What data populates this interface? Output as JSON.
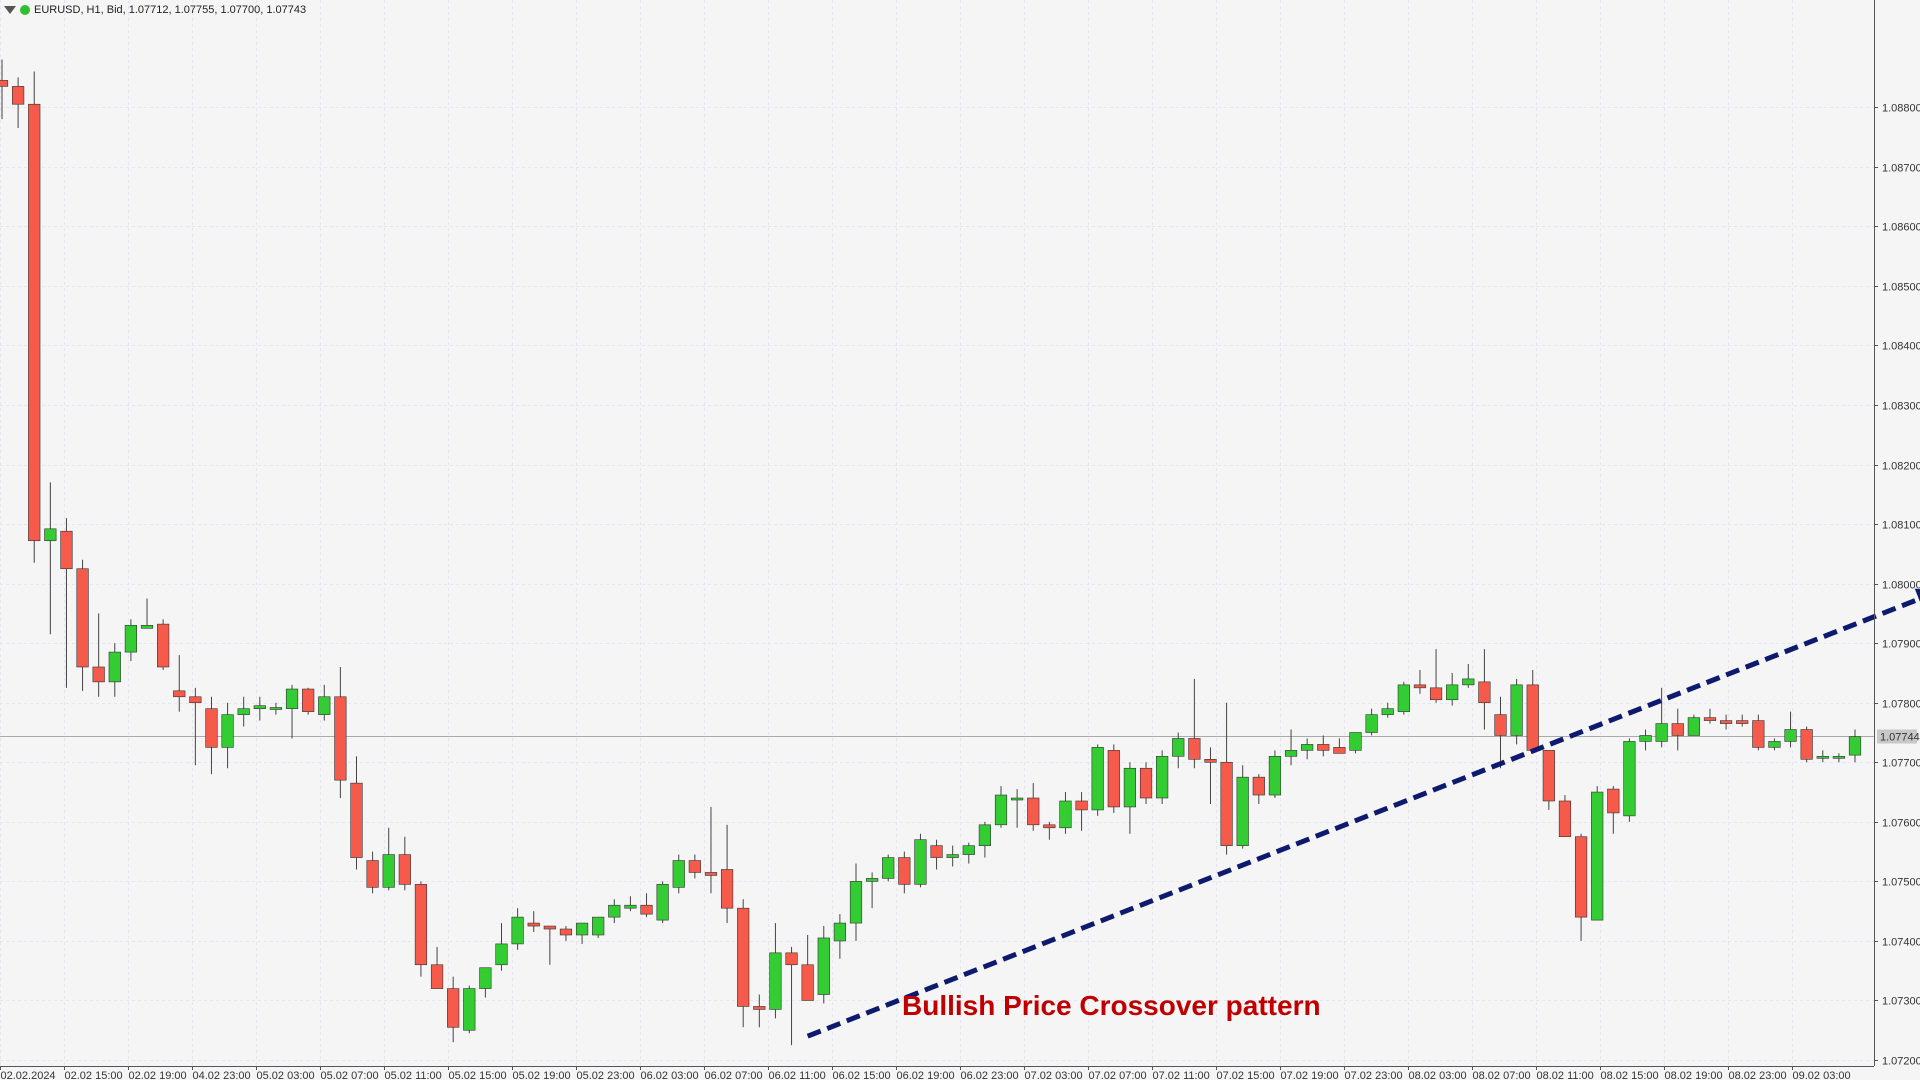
{
  "header": {
    "symbol_text": "EURUSD, H1, Bid, 1.07712, 1.07755, 1.07700, 1.07743",
    "menu_icon": "triangle-down-icon",
    "status_icon": "green-dot-icon"
  },
  "annotation": {
    "text": "Bullish Price Crossover pattern"
  },
  "colors": {
    "bull": "#33cc33",
    "bear": "#f55a4a",
    "wick": "#444444",
    "grid": "#e3e6ee",
    "trend": "#0d1a6e",
    "price_line": "#aaaaaa"
  },
  "chart_data": {
    "type": "candlestick",
    "symbol": "EURUSD",
    "timeframe": "H1",
    "ylim": [
      1.0719,
      1.0898
    ],
    "y_ticks": [
      "1.08800",
      "1.08700",
      "1.08600",
      "1.08500",
      "1.08400",
      "1.08300",
      "1.08200",
      "1.08100",
      "1.08000",
      "1.07900",
      "1.07800",
      "1.07700",
      "1.07600",
      "1.07500",
      "1.07400",
      "1.07300",
      "1.07200"
    ],
    "current_price": "1.07744",
    "x_ticks": [
      "02.02.2024",
      "02.02 15:00",
      "02.02 19:00",
      "04.02 23:00",
      "05.02 03:00",
      "05.02 07:00",
      "05.02 11:00",
      "05.02 15:00",
      "05.02 19:00",
      "05.02 23:00",
      "06.02 03:00",
      "06.02 07:00",
      "06.02 11:00",
      "06.02 15:00",
      "06.02 19:00",
      "06.02 23:00",
      "07.02 03:00",
      "07.02 07:00",
      "07.02 11:00",
      "07.02 15:00",
      "07.02 19:00",
      "07.02 23:00",
      "08.02 03:00",
      "08.02 07:00",
      "08.02 11:00",
      "08.02 15:00",
      "08.02 19:00",
      "08.02 23:00",
      "09.02 03:00"
    ],
    "candles": [
      {
        "o": 1.08845,
        "h": 1.0888,
        "l": 1.0878,
        "c": 1.08835
      },
      {
        "o": 1.08835,
        "h": 1.0885,
        "l": 1.08765,
        "c": 1.08805
      },
      {
        "o": 1.08805,
        "h": 1.0886,
        "l": 1.08035,
        "c": 1.08072
      },
      {
        "o": 1.08072,
        "h": 1.0817,
        "l": 1.07915,
        "c": 1.08092
      },
      {
        "o": 1.08088,
        "h": 1.0811,
        "l": 1.07825,
        "c": 1.08025
      },
      {
        "o": 1.08025,
        "h": 1.0804,
        "l": 1.0782,
        "c": 1.0786
      },
      {
        "o": 1.0786,
        "h": 1.0795,
        "l": 1.0781,
        "c": 1.07835
      },
      {
        "o": 1.07835,
        "h": 1.079,
        "l": 1.0781,
        "c": 1.07885
      },
      {
        "o": 1.07885,
        "h": 1.0794,
        "l": 1.0787,
        "c": 1.0793
      },
      {
        "o": 1.07925,
        "h": 1.07975,
        "l": 1.07925,
        "c": 1.0793
      },
      {
        "o": 1.07932,
        "h": 1.0794,
        "l": 1.07855,
        "c": 1.0786
      },
      {
        "o": 1.0782,
        "h": 1.0788,
        "l": 1.07785,
        "c": 1.0781
      },
      {
        "o": 1.0781,
        "h": 1.07825,
        "l": 1.07695,
        "c": 1.078
      },
      {
        "o": 1.0779,
        "h": 1.0781,
        "l": 1.0768,
        "c": 1.07725
      },
      {
        "o": 1.07725,
        "h": 1.078,
        "l": 1.0769,
        "c": 1.0778
      },
      {
        "o": 1.0778,
        "h": 1.0781,
        "l": 1.0776,
        "c": 1.0779
      },
      {
        "o": 1.0779,
        "h": 1.0781,
        "l": 1.0777,
        "c": 1.07795
      },
      {
        "o": 1.0779,
        "h": 1.078,
        "l": 1.0778,
        "c": 1.07792
      },
      {
        "o": 1.0779,
        "h": 1.0783,
        "l": 1.0774,
        "c": 1.07823
      },
      {
        "o": 1.07823,
        "h": 1.07825,
        "l": 1.0778,
        "c": 1.07785
      },
      {
        "o": 1.0778,
        "h": 1.0783,
        "l": 1.0777,
        "c": 1.0781
      },
      {
        "o": 1.0781,
        "h": 1.0786,
        "l": 1.0764,
        "c": 1.0767
      },
      {
        "o": 1.07665,
        "h": 1.0771,
        "l": 1.0752,
        "c": 1.0754
      },
      {
        "o": 1.07535,
        "h": 1.0755,
        "l": 1.0748,
        "c": 1.0749
      },
      {
        "o": 1.0749,
        "h": 1.0759,
        "l": 1.07485,
        "c": 1.07545
      },
      {
        "o": 1.07545,
        "h": 1.07575,
        "l": 1.07485,
        "c": 1.07495
      },
      {
        "o": 1.07495,
        "h": 1.075,
        "l": 1.0734,
        "c": 1.0736
      },
      {
        "o": 1.0736,
        "h": 1.0739,
        "l": 1.0733,
        "c": 1.0732
      },
      {
        "o": 1.0732,
        "h": 1.0734,
        "l": 1.0723,
        "c": 1.07255
      },
      {
        "o": 1.0725,
        "h": 1.07325,
        "l": 1.07245,
        "c": 1.0732
      },
      {
        "o": 1.0732,
        "h": 1.07355,
        "l": 1.07305,
        "c": 1.07355
      },
      {
        "o": 1.0736,
        "h": 1.0743,
        "l": 1.0735,
        "c": 1.07395
      },
      {
        "o": 1.07395,
        "h": 1.07455,
        "l": 1.07385,
        "c": 1.0744
      },
      {
        "o": 1.0743,
        "h": 1.0745,
        "l": 1.07415,
        "c": 1.07425
      },
      {
        "o": 1.07425,
        "h": 1.07425,
        "l": 1.0736,
        "c": 1.0742
      },
      {
        "o": 1.0742,
        "h": 1.07425,
        "l": 1.074,
        "c": 1.0741
      },
      {
        "o": 1.0741,
        "h": 1.0743,
        "l": 1.07395,
        "c": 1.0743
      },
      {
        "o": 1.0741,
        "h": 1.0744,
        "l": 1.07405,
        "c": 1.0744
      },
      {
        "o": 1.0744,
        "h": 1.0747,
        "l": 1.0743,
        "c": 1.0746
      },
      {
        "o": 1.07455,
        "h": 1.07475,
        "l": 1.0745,
        "c": 1.0746
      },
      {
        "o": 1.0746,
        "h": 1.0748,
        "l": 1.0744,
        "c": 1.07445
      },
      {
        "o": 1.07435,
        "h": 1.075,
        "l": 1.0743,
        "c": 1.07495
      },
      {
        "o": 1.0749,
        "h": 1.07545,
        "l": 1.0748,
        "c": 1.07535
      },
      {
        "o": 1.07535,
        "h": 1.07545,
        "l": 1.07505,
        "c": 1.07515
      },
      {
        "o": 1.07515,
        "h": 1.07625,
        "l": 1.0748,
        "c": 1.0751
      },
      {
        "o": 1.0752,
        "h": 1.07595,
        "l": 1.0743,
        "c": 1.07455
      },
      {
        "o": 1.07455,
        "h": 1.0747,
        "l": 1.07255,
        "c": 1.0729
      },
      {
        "o": 1.0729,
        "h": 1.0731,
        "l": 1.07255,
        "c": 1.07285
      },
      {
        "o": 1.07285,
        "h": 1.0743,
        "l": 1.0727,
        "c": 1.0738
      },
      {
        "o": 1.0738,
        "h": 1.0739,
        "l": 1.07225,
        "c": 1.0736
      },
      {
        "o": 1.0736,
        "h": 1.0741,
        "l": 1.073,
        "c": 1.073
      },
      {
        "o": 1.0731,
        "h": 1.07425,
        "l": 1.07295,
        "c": 1.07405
      },
      {
        "o": 1.074,
        "h": 1.07445,
        "l": 1.0737,
        "c": 1.0743
      },
      {
        "o": 1.0743,
        "h": 1.0753,
        "l": 1.074,
        "c": 1.075
      },
      {
        "o": 1.075,
        "h": 1.07515,
        "l": 1.07455,
        "c": 1.07505
      },
      {
        "o": 1.07505,
        "h": 1.07545,
        "l": 1.075,
        "c": 1.0754
      },
      {
        "o": 1.0754,
        "h": 1.0755,
        "l": 1.0748,
        "c": 1.07495
      },
      {
        "o": 1.07495,
        "h": 1.0758,
        "l": 1.0749,
        "c": 1.0757
      },
      {
        "o": 1.0756,
        "h": 1.0757,
        "l": 1.0752,
        "c": 1.0754
      },
      {
        "o": 1.0754,
        "h": 1.0756,
        "l": 1.07525,
        "c": 1.07545
      },
      {
        "o": 1.07545,
        "h": 1.07565,
        "l": 1.0753,
        "c": 1.0756
      },
      {
        "o": 1.0756,
        "h": 1.076,
        "l": 1.0754,
        "c": 1.07595
      },
      {
        "o": 1.07595,
        "h": 1.0766,
        "l": 1.0759,
        "c": 1.07645
      },
      {
        "o": 1.0764,
        "h": 1.07655,
        "l": 1.0759,
        "c": 1.0764
      },
      {
        "o": 1.0764,
        "h": 1.07665,
        "l": 1.07585,
        "c": 1.07595
      },
      {
        "o": 1.07595,
        "h": 1.076,
        "l": 1.0757,
        "c": 1.0759
      },
      {
        "o": 1.0759,
        "h": 1.0765,
        "l": 1.0758,
        "c": 1.07635
      },
      {
        "o": 1.07635,
        "h": 1.0765,
        "l": 1.07585,
        "c": 1.0762
      },
      {
        "o": 1.0762,
        "h": 1.0773,
        "l": 1.0761,
        "c": 1.07725
      },
      {
        "o": 1.0772,
        "h": 1.0773,
        "l": 1.07615,
        "c": 1.07625
      },
      {
        "o": 1.07625,
        "h": 1.077,
        "l": 1.0758,
        "c": 1.0769
      },
      {
        "o": 1.0769,
        "h": 1.077,
        "l": 1.0763,
        "c": 1.0764
      },
      {
        "o": 1.0764,
        "h": 1.0772,
        "l": 1.0763,
        "c": 1.0771
      },
      {
        "o": 1.0771,
        "h": 1.0775,
        "l": 1.0769,
        "c": 1.0774
      },
      {
        "o": 1.0774,
        "h": 1.0784,
        "l": 1.0769,
        "c": 1.07705
      },
      {
        "o": 1.07705,
        "h": 1.07725,
        "l": 1.0763,
        "c": 1.077
      },
      {
        "o": 1.077,
        "h": 1.078,
        "l": 1.07545,
        "c": 1.0756
      },
      {
        "o": 1.0756,
        "h": 1.07695,
        "l": 1.07555,
        "c": 1.07675
      },
      {
        "o": 1.07675,
        "h": 1.0768,
        "l": 1.0763,
        "c": 1.07645
      },
      {
        "o": 1.07645,
        "h": 1.0772,
        "l": 1.0764,
        "c": 1.0771
      },
      {
        "o": 1.0771,
        "h": 1.07755,
        "l": 1.07695,
        "c": 1.0772
      },
      {
        "o": 1.0772,
        "h": 1.0774,
        "l": 1.07705,
        "c": 1.0773
      },
      {
        "o": 1.0773,
        "h": 1.07745,
        "l": 1.0771,
        "c": 1.0772
      },
      {
        "o": 1.07725,
        "h": 1.0774,
        "l": 1.07715,
        "c": 1.07715
      },
      {
        "o": 1.0772,
        "h": 1.0775,
        "l": 1.07715,
        "c": 1.0775
      },
      {
        "o": 1.0775,
        "h": 1.0779,
        "l": 1.07745,
        "c": 1.0778
      },
      {
        "o": 1.0778,
        "h": 1.078,
        "l": 1.07775,
        "c": 1.0779
      },
      {
        "o": 1.07785,
        "h": 1.07835,
        "l": 1.0778,
        "c": 1.0783
      },
      {
        "o": 1.0783,
        "h": 1.07855,
        "l": 1.07815,
        "c": 1.07825
      },
      {
        "o": 1.07825,
        "h": 1.0789,
        "l": 1.078,
        "c": 1.07805
      },
      {
        "o": 1.07805,
        "h": 1.0785,
        "l": 1.07795,
        "c": 1.0783
      },
      {
        "o": 1.0783,
        "h": 1.07865,
        "l": 1.07825,
        "c": 1.0784
      },
      {
        "o": 1.07835,
        "h": 1.0789,
        "l": 1.07755,
        "c": 1.078
      },
      {
        "o": 1.0778,
        "h": 1.0781,
        "l": 1.0769,
        "c": 1.07745
      },
      {
        "o": 1.07745,
        "h": 1.0784,
        "l": 1.0773,
        "c": 1.0783
      },
      {
        "o": 1.0783,
        "h": 1.07855,
        "l": 1.07715,
        "c": 1.0772
      },
      {
        "o": 1.0772,
        "h": 1.0772,
        "l": 1.0762,
        "c": 1.07635
      },
      {
        "o": 1.07635,
        "h": 1.07645,
        "l": 1.07575,
        "c": 1.07575
      },
      {
        "o": 1.07575,
        "h": 1.0758,
        "l": 1.074,
        "c": 1.0744
      },
      {
        "o": 1.07435,
        "h": 1.0766,
        "l": 1.07435,
        "c": 1.0765
      },
      {
        "o": 1.07655,
        "h": 1.0766,
        "l": 1.0758,
        "c": 1.07615
      },
      {
        "o": 1.0761,
        "h": 1.0774,
        "l": 1.076,
        "c": 1.07735
      },
      {
        "o": 1.07735,
        "h": 1.07755,
        "l": 1.0772,
        "c": 1.07745
      },
      {
        "o": 1.07735,
        "h": 1.07825,
        "l": 1.07725,
        "c": 1.07765
      },
      {
        "o": 1.07765,
        "h": 1.0779,
        "l": 1.0772,
        "c": 1.07745
      },
      {
        "o": 1.07745,
        "h": 1.0778,
        "l": 1.07745,
        "c": 1.07775
      },
      {
        "o": 1.07775,
        "h": 1.0779,
        "l": 1.07765,
        "c": 1.0777
      },
      {
        "o": 1.0777,
        "h": 1.0778,
        "l": 1.07755,
        "c": 1.07765
      },
      {
        "o": 1.0777,
        "h": 1.0778,
        "l": 1.0776,
        "c": 1.07765
      },
      {
        "o": 1.0777,
        "h": 1.0778,
        "l": 1.0772,
        "c": 1.07725
      },
      {
        "o": 1.07725,
        "h": 1.0774,
        "l": 1.0772,
        "c": 1.07735
      },
      {
        "o": 1.07735,
        "h": 1.07785,
        "l": 1.07725,
        "c": 1.07755
      },
      {
        "o": 1.07755,
        "h": 1.0776,
        "l": 1.077,
        "c": 1.07705
      },
      {
        "o": 1.0771,
        "h": 1.0772,
        "l": 1.077,
        "c": 1.0771
      },
      {
        "o": 1.0771,
        "h": 1.07715,
        "l": 1.077,
        "c": 1.0771
      },
      {
        "o": 1.07712,
        "h": 1.07755,
        "l": 1.077,
        "c": 1.07743
      }
    ],
    "trendline": {
      "from": {
        "bar": 50,
        "price": 1.0724
      },
      "to": {
        "bar": 120,
        "price": 1.07985
      }
    }
  }
}
